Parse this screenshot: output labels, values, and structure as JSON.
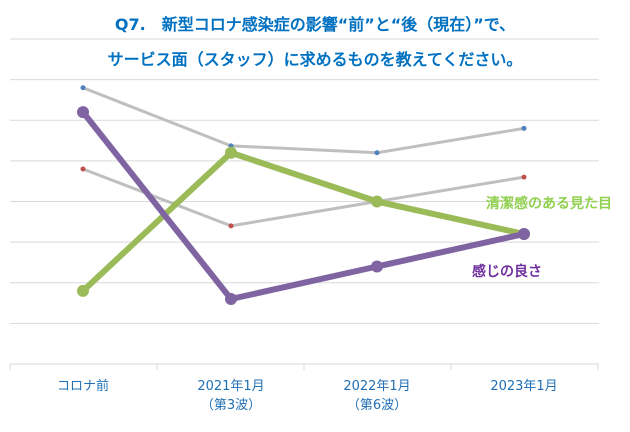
{
  "chart_data": {
    "type": "line",
    "title_lines": [
      "Q7.　新型コロナ感染症の影響“前”と“後（現在）”で、",
      "サービス面（スタッフ）に求めるものを教えてください。"
    ],
    "categories": [
      [
        "コロナ前",
        ""
      ],
      [
        "2021年1月",
        "（第3波）"
      ],
      [
        "2022年1月",
        "（第6波）"
      ],
      [
        "2023年1月",
        ""
      ]
    ],
    "ylim": [
      0,
      8
    ],
    "grid": true,
    "series": [
      {
        "name": "",
        "color": "#bfbfbf",
        "marker": "#4f81bd",
        "width": 3,
        "values": [
          6.8,
          5.37,
          5.2,
          5.8
        ]
      },
      {
        "name": "",
        "color": "#bfbfbf",
        "marker": "#c0504d",
        "width": 3,
        "values": [
          4.8,
          3.4,
          4.0,
          4.6
        ]
      },
      {
        "name": "清潔感のある見た目",
        "color": "#9bbb59",
        "marker": "#9bbb59",
        "width": 6,
        "values": [
          1.8,
          5.2,
          4.0,
          3.2
        ]
      },
      {
        "name": "感じの良さ",
        "color": "#8064a2",
        "marker": "#8064a2",
        "width": 6,
        "values": [
          6.2,
          1.6,
          2.4,
          3.2
        ]
      }
    ],
    "annotations": [
      {
        "text": "清潔感のある見た目",
        "color": "#92d050"
      },
      {
        "text": "感じの良さ",
        "color": "#7030a0"
      }
    ]
  }
}
